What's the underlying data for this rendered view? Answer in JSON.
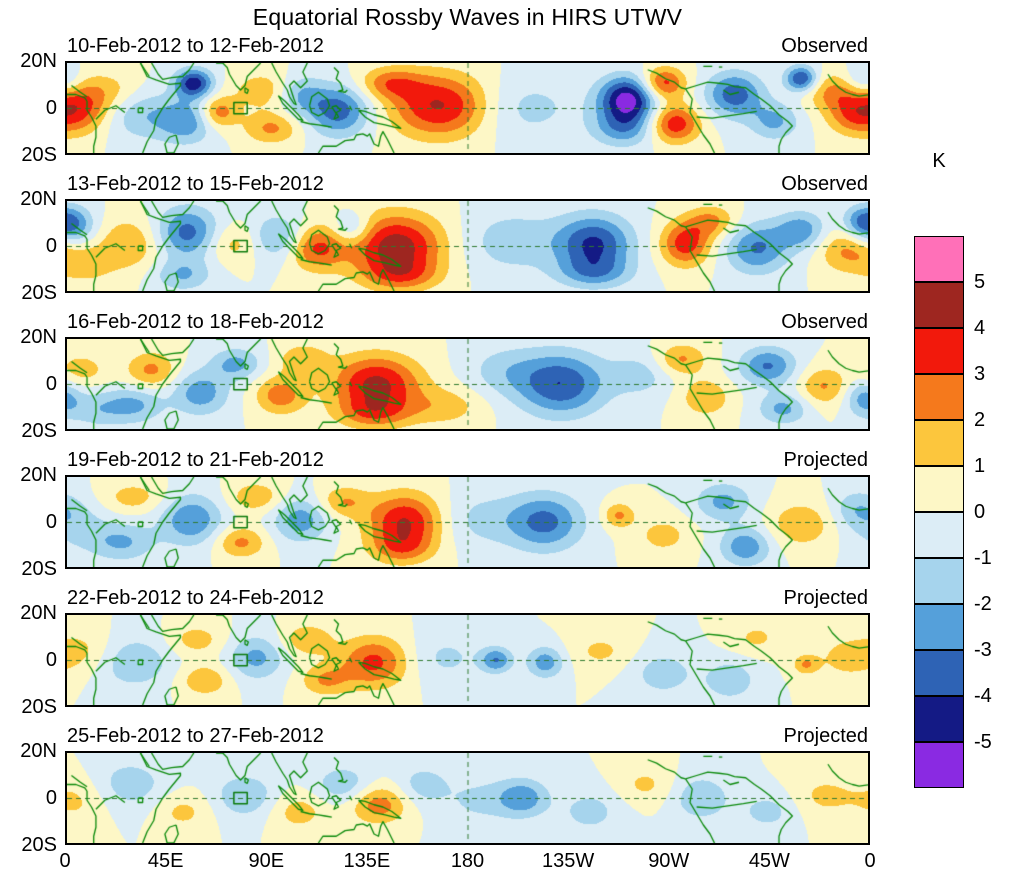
{
  "title": "Equatorial Rossby Waves in HIRS UTWV",
  "colorbar": {
    "unit_label": "K",
    "tick_labels": [
      "5",
      "4",
      "3",
      "2",
      "1",
      "0",
      "-1",
      "-2",
      "-3",
      "-4",
      "-5"
    ],
    "colors_top_to_bottom": [
      "#ff70b8",
      "#9e2620",
      "#f2190c",
      "#f5791c",
      "#fcc63d",
      "#fdf7c6",
      "#dcedf6",
      "#a6d4ed",
      "#55a0da",
      "#2e63b5",
      "#141a85",
      "#8a2ae2"
    ]
  },
  "axes": {
    "x_tick_labels": [
      "0",
      "45E",
      "90E",
      "135E",
      "180",
      "135W",
      "90W",
      "45W",
      "0"
    ],
    "y_tick_labels": [
      "20N",
      "0",
      "20S"
    ],
    "lon_range": [
      0,
      360
    ],
    "lat_range": [
      -20,
      20
    ]
  },
  "chart_data": {
    "type": "heatmap",
    "unit": "K",
    "value_levels": [
      -5,
      -4,
      -3,
      -2,
      -1,
      0,
      1,
      2,
      3,
      4,
      5
    ],
    "panels": [
      {
        "label": "10-Feb-2012 to 12-Feb-2012",
        "tag": "Observed",
        "anomaly_centers": [
          {
            "lon": 5,
            "lat": 0,
            "amp": 3.5,
            "rlon": 10,
            "rlat": 8
          },
          {
            "lon": 20,
            "lat": 8,
            "amp": 1.2,
            "rlon": 10,
            "rlat": 6
          },
          {
            "lon": 33,
            "lat": -3,
            "amp": -1.8,
            "rlon": 12,
            "rlat": 8
          },
          {
            "lon": 57,
            "lat": 11,
            "amp": -4.6,
            "rlon": 6,
            "rlat": 4.5
          },
          {
            "lon": 54,
            "lat": -6,
            "amp": -2.6,
            "rlon": 9,
            "rlat": 7
          },
          {
            "lon": 68,
            "lat": -2,
            "amp": 2.8,
            "rlon": 6,
            "rlat": 5
          },
          {
            "lon": 88,
            "lat": 8,
            "amp": 1.6,
            "rlon": 10,
            "rlat": 6
          },
          {
            "lon": 92,
            "lat": -9,
            "amp": 2.2,
            "rlon": 9,
            "rlat": 5
          },
          {
            "lon": 105,
            "lat": 6,
            "amp": -2.0,
            "rlon": 7,
            "rlat": 6
          },
          {
            "lon": 122,
            "lat": -1,
            "amp": -3.6,
            "rlon": 10,
            "rlat": 8
          },
          {
            "lon": 145,
            "lat": 11,
            "amp": 2.4,
            "rlon": 10,
            "rlat": 5
          },
          {
            "lon": 168,
            "lat": 1,
            "amp": 4.2,
            "rlon": 16,
            "rlat": 10
          },
          {
            "lon": 205,
            "lat": 0,
            "amp": -1.4,
            "rlon": 18,
            "rlat": 10
          },
          {
            "lon": 252,
            "lat": 4,
            "amp": -5.5,
            "rlon": 9,
            "rlat": 7
          },
          {
            "lon": 250,
            "lat": -9,
            "amp": -2.5,
            "rlon": 10,
            "rlat": 6
          },
          {
            "lon": 268,
            "lat": 11,
            "amp": 3.6,
            "rlon": 7,
            "rlat": 5
          },
          {
            "lon": 273,
            "lat": -7,
            "amp": 3.8,
            "rlon": 8,
            "rlat": 6
          },
          {
            "lon": 300,
            "lat": 6,
            "amp": -3.6,
            "rlon": 9,
            "rlat": 7
          },
          {
            "lon": 330,
            "lat": 13,
            "amp": -4.2,
            "rlon": 5,
            "rlat": 4
          },
          {
            "lon": 318,
            "lat": -6,
            "amp": -2.2,
            "rlon": 8,
            "rlat": 6
          },
          {
            "lon": 345,
            "lat": 7,
            "amp": 2.2,
            "rlon": 9,
            "rlat": 6
          },
          {
            "lon": 352,
            "lat": -4,
            "amp": 1.8,
            "rlon": 8,
            "rlat": 6
          },
          {
            "lon": 358,
            "lat": 12,
            "amp": -2.0,
            "rlon": 6,
            "rlat": 5
          }
        ]
      },
      {
        "label": "13-Feb-2012 to 15-Feb-2012",
        "tag": "Observed",
        "anomaly_centers": [
          {
            "lon": 3,
            "lat": 9,
            "amp": -2.6,
            "rlon": 7,
            "rlat": 6
          },
          {
            "lon": 8,
            "lat": -8,
            "amp": 1.6,
            "rlon": 9,
            "rlat": 6
          },
          {
            "lon": 28,
            "lat": 1,
            "amp": 2.0,
            "rlon": 10,
            "rlat": 8
          },
          {
            "lon": 54,
            "lat": 6,
            "amp": -3.4,
            "rlon": 10,
            "rlat": 8
          },
          {
            "lon": 52,
            "lat": -13,
            "amp": -2.0,
            "rlon": 9,
            "rlat": 5
          },
          {
            "lon": 74,
            "lat": 1,
            "amp": 1.5,
            "rlon": 8,
            "rlat": 6
          },
          {
            "lon": 95,
            "lat": 4,
            "amp": -2.3,
            "rlon": 8,
            "rlat": 7
          },
          {
            "lon": 112,
            "lat": -1,
            "amp": 3.1,
            "rlon": 9,
            "rlat": 7
          },
          {
            "lon": 128,
            "lat": 8,
            "amp": -2.0,
            "rlon": 6,
            "rlat": 5
          },
          {
            "lon": 148,
            "lat": 0,
            "amp": 4.6,
            "rlon": 15,
            "rlat": 10
          },
          {
            "lon": 150,
            "lat": -13,
            "amp": 2.0,
            "rlon": 12,
            "rlat": 5
          },
          {
            "lon": 200,
            "lat": 2,
            "amp": -1.6,
            "rlon": 16,
            "rlat": 10
          },
          {
            "lon": 237,
            "lat": 1,
            "amp": -4.1,
            "rlon": 12,
            "rlat": 9
          },
          {
            "lon": 237,
            "lat": -12,
            "amp": -2.0,
            "rlon": 12,
            "rlat": 5
          },
          {
            "lon": 278,
            "lat": 1,
            "amp": 3.6,
            "rlon": 8,
            "rlat": 7
          },
          {
            "lon": 290,
            "lat": 11,
            "amp": 2.2,
            "rlon": 8,
            "rlat": 5
          },
          {
            "lon": 310,
            "lat": -1,
            "amp": -3.1,
            "rlon": 10,
            "rlat": 8
          },
          {
            "lon": 330,
            "lat": 7,
            "amp": -2.6,
            "rlon": 8,
            "rlat": 6
          },
          {
            "lon": 350,
            "lat": -2,
            "amp": 2.1,
            "rlon": 9,
            "rlat": 7
          },
          {
            "lon": 357,
            "lat": 11,
            "amp": -2.2,
            "rlon": 6,
            "rlat": 5
          }
        ]
      },
      {
        "label": "16-Feb-2012 to 18-Feb-2012",
        "tag": "Observed",
        "anomaly_centers": [
          {
            "lon": 6,
            "lat": 6,
            "amp": 1.5,
            "rlon": 9,
            "rlat": 6
          },
          {
            "lon": 14,
            "lat": -11,
            "amp": -1.6,
            "rlon": 9,
            "rlat": 6
          },
          {
            "lon": 38,
            "lat": 6,
            "amp": 2.3,
            "rlon": 8,
            "rlat": 6
          },
          {
            "lon": 31,
            "lat": -9,
            "amp": -2.1,
            "rlon": 9,
            "rlat": 6
          },
          {
            "lon": 60,
            "lat": -4,
            "amp": -2.6,
            "rlon": 9,
            "rlat": 7
          },
          {
            "lon": 76,
            "lat": 9,
            "amp": -2.3,
            "rlon": 8,
            "rlat": 5
          },
          {
            "lon": 96,
            "lat": -5,
            "amp": 2.6,
            "rlon": 8,
            "rlat": 6
          },
          {
            "lon": 106,
            "lat": 11,
            "amp": 1.8,
            "rlon": 8,
            "rlat": 5
          },
          {
            "lon": 139,
            "lat": 0,
            "amp": 4.3,
            "rlon": 14,
            "rlat": 9
          },
          {
            "lon": 138,
            "lat": -13,
            "amp": 2.2,
            "rlon": 12,
            "rlat": 5
          },
          {
            "lon": 170,
            "lat": -10,
            "amp": 1.5,
            "rlon": 12,
            "rlat": 6
          },
          {
            "lon": 196,
            "lat": 6,
            "amp": -1.3,
            "rlon": 12,
            "rlat": 8
          },
          {
            "lon": 222,
            "lat": 0,
            "amp": -3.9,
            "rlon": 14,
            "rlat": 10
          },
          {
            "lon": 258,
            "lat": 4,
            "amp": -1.4,
            "rlon": 10,
            "rlat": 7
          },
          {
            "lon": 276,
            "lat": 11,
            "amp": 2.2,
            "rlon": 8,
            "rlat": 5
          },
          {
            "lon": 287,
            "lat": -6,
            "amp": 1.9,
            "rlon": 8,
            "rlat": 6
          },
          {
            "lon": 315,
            "lat": 8,
            "amp": -3.1,
            "rlon": 9,
            "rlat": 6
          },
          {
            "lon": 322,
            "lat": -11,
            "amp": -2.3,
            "rlon": 8,
            "rlat": 5
          },
          {
            "lon": 340,
            "lat": -1,
            "amp": 2.1,
            "rlon": 8,
            "rlat": 6
          },
          {
            "lon": 358,
            "lat": -6,
            "amp": -2.4,
            "rlon": 6,
            "rlat": 6
          }
        ]
      },
      {
        "label": "19-Feb-2012 to 21-Feb-2012",
        "tag": "Projected",
        "anomaly_centers": [
          {
            "lon": 5,
            "lat": -2,
            "amp": -1.3,
            "rlon": 10,
            "rlat": 8
          },
          {
            "lon": 25,
            "lat": -9,
            "amp": -2.1,
            "rlon": 10,
            "rlat": 6
          },
          {
            "lon": 30,
            "lat": 11,
            "amp": 1.5,
            "rlon": 10,
            "rlat": 5
          },
          {
            "lon": 56,
            "lat": 1,
            "amp": -2.9,
            "rlon": 10,
            "rlat": 8
          },
          {
            "lon": 78,
            "lat": -9,
            "amp": 2.3,
            "rlon": 8,
            "rlat": 5
          },
          {
            "lon": 85,
            "lat": 11,
            "amp": 1.8,
            "rlon": 9,
            "rlat": 5
          },
          {
            "lon": 105,
            "lat": 1,
            "amp": -2.6,
            "rlon": 9,
            "rlat": 7
          },
          {
            "lon": 124,
            "lat": 9,
            "amp": 2.0,
            "rlon": 8,
            "rlat": 5
          },
          {
            "lon": 152,
            "lat": 0,
            "amp": 4.1,
            "rlon": 12,
            "rlat": 9
          },
          {
            "lon": 150,
            "lat": -12,
            "amp": 1.8,
            "rlon": 10,
            "rlat": 5
          },
          {
            "lon": 185,
            "lat": 1,
            "amp": -1.3,
            "rlon": 14,
            "rlat": 9
          },
          {
            "lon": 215,
            "lat": 0,
            "amp": -3.3,
            "rlon": 12,
            "rlat": 9
          },
          {
            "lon": 248,
            "lat": 3,
            "amp": 2.2,
            "rlon": 5,
            "rlat": 4
          },
          {
            "lon": 268,
            "lat": -6,
            "amp": 1.4,
            "rlon": 9,
            "rlat": 6
          },
          {
            "lon": 295,
            "lat": 9,
            "amp": -2.3,
            "rlon": 9,
            "rlat": 6
          },
          {
            "lon": 305,
            "lat": -11,
            "amp": -2.8,
            "rlon": 8,
            "rlat": 6
          },
          {
            "lon": 330,
            "lat": -1,
            "amp": 1.9,
            "rlon": 10,
            "rlat": 7
          },
          {
            "lon": 355,
            "lat": 6,
            "amp": -1.6,
            "rlon": 8,
            "rlat": 6
          }
        ]
      },
      {
        "label": "22-Feb-2012 to 24-Feb-2012",
        "tag": "Projected",
        "anomaly_centers": [
          {
            "lon": 8,
            "lat": 4,
            "amp": 1.2,
            "rlon": 10,
            "rlat": 7
          },
          {
            "lon": 30,
            "lat": -1,
            "amp": -1.9,
            "rlon": 12,
            "rlat": 8
          },
          {
            "lon": 58,
            "lat": 9,
            "amp": 1.5,
            "rlon": 9,
            "rlat": 5
          },
          {
            "lon": 62,
            "lat": -9,
            "amp": 1.9,
            "rlon": 8,
            "rlat": 5
          },
          {
            "lon": 85,
            "lat": 1,
            "amp": -2.3,
            "rlon": 9,
            "rlat": 7
          },
          {
            "lon": 108,
            "lat": 9,
            "amp": 1.9,
            "rlon": 8,
            "rlat": 5
          },
          {
            "lon": 116,
            "lat": -9,
            "amp": 2.0,
            "rlon": 8,
            "rlat": 5
          },
          {
            "lon": 138,
            "lat": -1,
            "amp": 3.3,
            "rlon": 11,
            "rlat": 8
          },
          {
            "lon": 170,
            "lat": 1,
            "amp": -1.2,
            "rlon": 12,
            "rlat": 8
          },
          {
            "lon": 193,
            "lat": 0,
            "amp": -2.9,
            "rlon": 5,
            "rlat": 4
          },
          {
            "lon": 215,
            "lat": -1,
            "amp": -2.6,
            "rlon": 6,
            "rlat": 5
          },
          {
            "lon": 240,
            "lat": 4,
            "amp": 1.2,
            "rlon": 10,
            "rlat": 6
          },
          {
            "lon": 268,
            "lat": -6,
            "amp": -1.6,
            "rlon": 10,
            "rlat": 7
          },
          {
            "lon": 298,
            "lat": -9,
            "amp": -1.9,
            "rlon": 8,
            "rlat": 6
          },
          {
            "lon": 310,
            "lat": 10,
            "amp": 1.2,
            "rlon": 8,
            "rlat": 5
          },
          {
            "lon": 332,
            "lat": -2,
            "amp": 2.0,
            "rlon": 4,
            "rlat": 3
          },
          {
            "lon": 350,
            "lat": 1,
            "amp": 1.3,
            "rlon": 10,
            "rlat": 7
          }
        ]
      },
      {
        "label": "25-Feb-2012 to 27-Feb-2012",
        "tag": "Projected",
        "anomaly_centers": [
          {
            "lon": 5,
            "lat": -1,
            "amp": 1.2,
            "rlon": 10,
            "rlat": 8
          },
          {
            "lon": 28,
            "lat": 6,
            "amp": -1.6,
            "rlon": 12,
            "rlat": 8
          },
          {
            "lon": 52,
            "lat": -6,
            "amp": 1.3,
            "rlon": 9,
            "rlat": 6
          },
          {
            "lon": 80,
            "lat": 1,
            "amp": -1.9,
            "rlon": 10,
            "rlat": 7
          },
          {
            "lon": 104,
            "lat": -6,
            "amp": 1.5,
            "rlon": 9,
            "rlat": 6
          },
          {
            "lon": 124,
            "lat": 6,
            "amp": -1.8,
            "rlon": 9,
            "rlat": 6
          },
          {
            "lon": 140,
            "lat": -3,
            "amp": 2.6,
            "rlon": 9,
            "rlat": 6
          },
          {
            "lon": 160,
            "lat": 6,
            "amp": -1.5,
            "rlon": 8,
            "rlat": 6
          },
          {
            "lon": 185,
            "lat": -1,
            "amp": -1.2,
            "rlon": 12,
            "rlat": 8
          },
          {
            "lon": 205,
            "lat": 0,
            "amp": -2.6,
            "rlon": 8,
            "rlat": 6
          },
          {
            "lon": 235,
            "lat": -6,
            "amp": -1.4,
            "rlon": 10,
            "rlat": 7
          },
          {
            "lon": 260,
            "lat": 6,
            "amp": 1.2,
            "rlon": 9,
            "rlat": 6
          },
          {
            "lon": 285,
            "lat": 0,
            "amp": -1.9,
            "rlon": 9,
            "rlat": 7
          },
          {
            "lon": 315,
            "lat": -6,
            "amp": -1.4,
            "rlon": 9,
            "rlat": 6
          },
          {
            "lon": 340,
            "lat": 1,
            "amp": 1.2,
            "rlon": 10,
            "rlat": 7
          }
        ]
      }
    ]
  }
}
